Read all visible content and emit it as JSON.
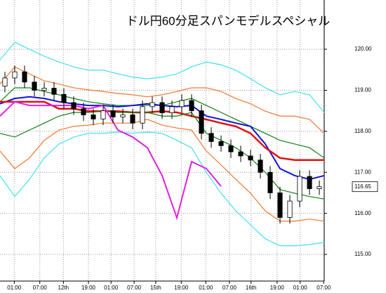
{
  "chart_data": {
    "type": "candlestick",
    "title": "ドル円60分足スパンモデルスペシャル",
    "x": [
      1,
      3,
      5,
      7,
      9,
      11,
      13,
      15,
      17,
      19,
      21,
      23,
      25,
      27,
      29,
      31,
      33,
      35,
      37,
      39,
      41,
      43,
      45,
      47,
      49,
      51,
      53,
      55,
      57,
      59,
      61,
      63,
      65
    ],
    "open": [
      119.1,
      119.3,
      119.45,
      119.2,
      119.0,
      119.05,
      118.9,
      118.7,
      118.55,
      118.4,
      118.3,
      118.5,
      118.35,
      118.4,
      118.2,
      118.6,
      118.7,
      118.45,
      118.6,
      118.75,
      118.5,
      117.95,
      117.75,
      117.65,
      117.5,
      117.4,
      117.3,
      117.0,
      116.5,
      115.9,
      116.3,
      116.9,
      116.6
    ],
    "high": [
      119.45,
      119.6,
      119.6,
      119.35,
      119.2,
      119.2,
      119.05,
      118.85,
      118.7,
      118.55,
      118.65,
      118.65,
      118.55,
      118.55,
      118.75,
      118.85,
      118.85,
      118.75,
      118.9,
      118.9,
      118.65,
      118.1,
      117.9,
      117.8,
      117.65,
      117.55,
      117.45,
      117.15,
      116.65,
      116.45,
      117.05,
      117.05,
      116.8
    ],
    "low": [
      118.95,
      119.15,
      119.05,
      118.85,
      118.85,
      118.75,
      118.55,
      118.4,
      118.25,
      118.15,
      118.15,
      118.2,
      118.2,
      118.05,
      118.05,
      118.45,
      118.3,
      118.3,
      118.45,
      118.35,
      117.8,
      117.6,
      117.5,
      117.35,
      117.25,
      117.15,
      116.85,
      116.35,
      115.75,
      115.75,
      116.15,
      116.45,
      116.45
    ],
    "close": [
      119.3,
      119.45,
      119.2,
      119.0,
      119.05,
      118.9,
      118.7,
      118.55,
      118.4,
      118.3,
      118.5,
      118.35,
      118.4,
      118.2,
      118.6,
      118.7,
      118.45,
      118.6,
      118.75,
      118.5,
      117.95,
      117.75,
      117.65,
      117.5,
      117.4,
      117.3,
      117.0,
      116.5,
      115.9,
      116.3,
      116.9,
      116.6,
      116.65
    ],
    "up_color": "#ffffff",
    "down_color": "#000000",
    "overlay_x": [
      0,
      3,
      6,
      9,
      12,
      15,
      18,
      21,
      24,
      27,
      30,
      33,
      36,
      39,
      42,
      45,
      48,
      51,
      54,
      57,
      60,
      63,
      66
    ],
    "overlays": [
      {
        "color": "#40e0f0",
        "values": [
          119.74,
          120.17,
          120.0,
          119.83,
          119.69,
          119.57,
          119.49,
          119.49,
          119.4,
          119.32,
          119.28,
          119.32,
          119.4,
          119.57,
          119.69,
          119.62,
          119.49,
          119.28,
          119.06,
          118.89,
          118.97,
          118.89,
          118.46
        ]
      },
      {
        "color": "#f07830",
        "values": [
          119.15,
          119.57,
          119.4,
          119.23,
          119.15,
          119.06,
          119.01,
          118.97,
          118.92,
          118.89,
          118.84,
          118.89,
          118.97,
          119.06,
          119.06,
          118.97,
          118.8,
          118.67,
          118.49,
          118.37,
          118.37,
          118.29,
          117.95
        ]
      },
      {
        "color": "#108010",
        "values": [
          118.72,
          119.06,
          119.06,
          118.97,
          118.89,
          118.8,
          118.72,
          118.67,
          118.63,
          118.63,
          118.63,
          118.63,
          118.72,
          118.8,
          118.63,
          118.46,
          118.29,
          118.12,
          117.95,
          117.78,
          117.69,
          117.6,
          117.35
        ]
      },
      {
        "color": "#1010e0",
        "width": 2,
        "values": [
          118.67,
          118.8,
          118.84,
          118.8,
          118.72,
          118.67,
          118.63,
          118.63,
          118.6,
          118.63,
          118.67,
          118.63,
          118.6,
          118.63,
          118.37,
          118.29,
          118.2,
          118.12,
          117.69,
          117.09,
          116.92,
          116.83,
          116.92
        ]
      },
      {
        "color": "#e01010",
        "width": 2.5,
        "values": [
          118.72,
          118.72,
          118.72,
          118.72,
          118.55,
          118.55,
          118.49,
          118.49,
          118.49,
          118.46,
          118.46,
          118.49,
          118.46,
          118.37,
          118.29,
          118.2,
          118.12,
          117.95,
          117.6,
          117.35,
          117.3,
          117.3,
          117.3
        ]
      },
      {
        "color": "#108010",
        "values": [
          117.95,
          117.86,
          118.03,
          118.2,
          118.37,
          118.46,
          118.46,
          118.49,
          118.46,
          118.46,
          118.46,
          118.37,
          118.37,
          118.46,
          117.95,
          117.78,
          117.6,
          117.35,
          117.0,
          116.58,
          116.49,
          116.41,
          116.35
        ]
      },
      {
        "color": "#f07830",
        "values": [
          117.52,
          117.09,
          117.35,
          117.78,
          118.03,
          118.12,
          118.15,
          118.2,
          118.2,
          118.2,
          118.29,
          118.15,
          118.08,
          118.03,
          117.52,
          117.18,
          116.83,
          116.49,
          116.06,
          115.81,
          115.81,
          115.86,
          115.81
        ]
      },
      {
        "color": "#40e0f0",
        "values": [
          116.92,
          116.41,
          116.83,
          117.35,
          117.69,
          117.86,
          117.95,
          117.95,
          117.98,
          117.95,
          117.98,
          117.95,
          117.78,
          117.6,
          117.0,
          116.49,
          116.06,
          115.72,
          115.38,
          115.21,
          115.21,
          115.24,
          115.29
        ]
      },
      {
        "color": "#e020e0",
        "width": 2,
        "values": [
          118.37,
          118.72,
          118.63,
          118.63,
          118.63,
          118.63,
          118.55,
          118.63,
          118.03,
          117.86,
          117.6,
          116.92,
          115.89,
          117.26,
          117.09,
          116.66,
          null,
          null,
          null,
          null,
          null,
          null,
          null
        ]
      }
    ],
    "current_price": 116.65,
    "xlim": [
      0,
      66
    ],
    "ylim": [
      114.35,
      121.2
    ],
    "yticks": [
      {
        "value": 115,
        "label": "115.00"
      },
      {
        "value": 116,
        "label": "116.00"
      },
      {
        "value": 117,
        "label": "117.00"
      },
      {
        "value": 118,
        "label": "118.00"
      },
      {
        "value": 119,
        "label": "119.00"
      },
      {
        "value": 120,
        "label": "120.00"
      }
    ],
    "xticks": [
      {
        "value": 2.9,
        "label": "01:00"
      },
      {
        "value": 8.1,
        "label": "07:00"
      },
      {
        "value": 12.9,
        "label": "12th"
      },
      {
        "value": 18,
        "label": "19:00"
      },
      {
        "value": 22.6,
        "label": "01:00"
      },
      {
        "value": 27.3,
        "label": "07:00"
      },
      {
        "value": 31.7,
        "label": "15th"
      },
      {
        "value": 36.9,
        "label": "19:00"
      },
      {
        "value": 41.9,
        "label": "01:00"
      },
      {
        "value": 46.7,
        "label": "07:00"
      },
      {
        "value": 51.1,
        "label": "16th"
      },
      {
        "value": 56.4,
        "label": "19:00"
      },
      {
        "value": 61.1,
        "label": "01:00"
      },
      {
        "value": 65.9,
        "label": "07:00"
      }
    ],
    "grid": true
  }
}
